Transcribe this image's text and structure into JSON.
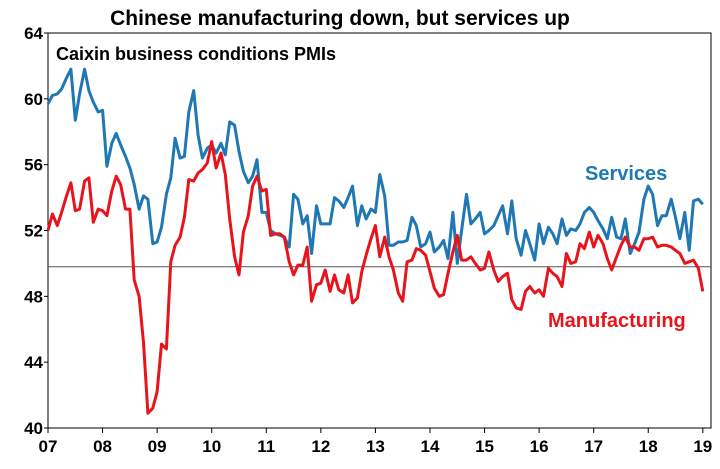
{
  "chart_data": {
    "type": "line",
    "title": "Chinese manufacturing down, but services up",
    "subtitle": "Caixin business conditions PMIs",
    "xlabel": "",
    "ylabel": "",
    "ylim": [
      40,
      64
    ],
    "y_ticks": [
      "40",
      "44",
      "48",
      "52",
      "56",
      "60",
      "64"
    ],
    "x_range": [
      2007.0,
      2019.15
    ],
    "x_ticks": [
      {
        "label": "07",
        "x": 2007
      },
      {
        "label": "08",
        "x": 2008
      },
      {
        "label": "09",
        "x": 2009
      },
      {
        "label": "10",
        "x": 2010
      },
      {
        "label": "11",
        "x": 2011
      },
      {
        "label": "12",
        "x": 2012
      },
      {
        "label": "13",
        "x": 2013
      },
      {
        "label": "14",
        "x": 2014
      },
      {
        "label": "15",
        "x": 2015
      },
      {
        "label": "16",
        "x": 2016
      },
      {
        "label": "17",
        "x": 2017
      },
      {
        "label": "18",
        "x": 2018
      },
      {
        "label": "19",
        "x": 2019
      }
    ],
    "reference_line": 49.8,
    "series": [
      {
        "name": "Services",
        "label": "Services",
        "color": "#1f77b4",
        "points": [
          [
            2007.0,
            59.7
          ],
          [
            2007.08,
            60.2
          ],
          [
            2007.17,
            60.3
          ],
          [
            2007.25,
            60.6
          ],
          [
            2007.33,
            61.2
          ],
          [
            2007.42,
            61.8
          ],
          [
            2007.5,
            58.7
          ],
          [
            2007.58,
            60.3
          ],
          [
            2007.67,
            61.8
          ],
          [
            2007.75,
            60.5
          ],
          [
            2007.83,
            59.8
          ],
          [
            2007.92,
            59.2
          ],
          [
            2008.0,
            59.3
          ],
          [
            2008.08,
            55.9
          ],
          [
            2008.17,
            57.3
          ],
          [
            2008.25,
            57.9
          ],
          [
            2008.33,
            57.2
          ],
          [
            2008.42,
            56.5
          ],
          [
            2008.5,
            55.8
          ],
          [
            2008.58,
            54.8
          ],
          [
            2008.67,
            53.3
          ],
          [
            2008.75,
            54.1
          ],
          [
            2008.83,
            53.9
          ],
          [
            2008.92,
            51.2
          ],
          [
            2009.0,
            51.3
          ],
          [
            2009.08,
            52.2
          ],
          [
            2009.17,
            54.2
          ],
          [
            2009.25,
            55.2
          ],
          [
            2009.33,
            57.6
          ],
          [
            2009.42,
            56.4
          ],
          [
            2009.5,
            56.5
          ],
          [
            2009.58,
            59.2
          ],
          [
            2009.67,
            60.5
          ],
          [
            2009.75,
            57.8
          ],
          [
            2009.83,
            56.4
          ],
          [
            2009.92,
            57.0
          ],
          [
            2010.0,
            57.2
          ],
          [
            2010.08,
            56.7
          ],
          [
            2010.17,
            57.3
          ],
          [
            2010.25,
            56.6
          ],
          [
            2010.33,
            58.6
          ],
          [
            2010.42,
            58.4
          ],
          [
            2010.5,
            56.8
          ],
          [
            2010.58,
            55.6
          ],
          [
            2010.67,
            54.9
          ],
          [
            2010.75,
            55.3
          ],
          [
            2010.83,
            56.3
          ],
          [
            2010.92,
            53.1
          ],
          [
            2011.0,
            53.1
          ],
          [
            2011.08,
            52.0
          ],
          [
            2011.17,
            51.8
          ],
          [
            2011.25,
            51.7
          ],
          [
            2011.33,
            51.6
          ],
          [
            2011.42,
            51.0
          ],
          [
            2011.5,
            54.2
          ],
          [
            2011.58,
            53.9
          ],
          [
            2011.67,
            52.4
          ],
          [
            2011.75,
            52.9
          ],
          [
            2011.83,
            50.6
          ],
          [
            2011.92,
            53.5
          ],
          [
            2012.0,
            52.4
          ],
          [
            2012.08,
            52.4
          ],
          [
            2012.17,
            52.4
          ],
          [
            2012.25,
            54.0
          ],
          [
            2012.33,
            53.8
          ],
          [
            2012.42,
            53.4
          ],
          [
            2012.5,
            54.0
          ],
          [
            2012.58,
            54.7
          ],
          [
            2012.67,
            52.3
          ],
          [
            2012.75,
            53.5
          ],
          [
            2012.83,
            52.7
          ],
          [
            2012.92,
            53.3
          ],
          [
            2013.0,
            53.1
          ],
          [
            2013.08,
            55.4
          ],
          [
            2013.17,
            54.1
          ],
          [
            2013.25,
            51.1
          ],
          [
            2013.33,
            51.1
          ],
          [
            2013.42,
            51.3
          ],
          [
            2013.5,
            51.3
          ],
          [
            2013.58,
            51.4
          ],
          [
            2013.67,
            52.8
          ],
          [
            2013.75,
            52.3
          ],
          [
            2013.83,
            51.0
          ],
          [
            2013.92,
            51.2
          ],
          [
            2014.0,
            51.9
          ],
          [
            2014.08,
            50.7
          ],
          [
            2014.17,
            51.0
          ],
          [
            2014.25,
            51.4
          ],
          [
            2014.33,
            50.3
          ],
          [
            2014.42,
            53.1
          ],
          [
            2014.5,
            50.0
          ],
          [
            2014.58,
            52.0
          ],
          [
            2014.67,
            54.2
          ],
          [
            2014.75,
            52.4
          ],
          [
            2014.83,
            52.7
          ],
          [
            2014.92,
            53.1
          ],
          [
            2015.0,
            51.8
          ],
          [
            2015.08,
            52.0
          ],
          [
            2015.17,
            52.3
          ],
          [
            2015.25,
            52.9
          ],
          [
            2015.33,
            53.5
          ],
          [
            2015.42,
            51.8
          ],
          [
            2015.5,
            53.8
          ],
          [
            2015.58,
            51.5
          ],
          [
            2015.67,
            50.5
          ],
          [
            2015.75,
            52.0
          ],
          [
            2015.83,
            51.2
          ],
          [
            2015.92,
            50.2
          ],
          [
            2016.0,
            52.4
          ],
          [
            2016.08,
            51.2
          ],
          [
            2016.17,
            52.2
          ],
          [
            2016.25,
            51.8
          ],
          [
            2016.33,
            51.2
          ],
          [
            2016.42,
            52.7
          ],
          [
            2016.5,
            51.7
          ],
          [
            2016.58,
            52.1
          ],
          [
            2016.67,
            52.0
          ],
          [
            2016.75,
            52.4
          ],
          [
            2016.83,
            53.1
          ],
          [
            2016.92,
            53.4
          ],
          [
            2017.0,
            53.1
          ],
          [
            2017.08,
            52.6
          ],
          [
            2017.17,
            52.1
          ],
          [
            2017.25,
            51.5
          ],
          [
            2017.33,
            52.8
          ],
          [
            2017.42,
            51.6
          ],
          [
            2017.5,
            51.5
          ],
          [
            2017.58,
            52.7
          ],
          [
            2017.67,
            50.6
          ],
          [
            2017.75,
            51.2
          ],
          [
            2017.83,
            51.9
          ],
          [
            2017.92,
            53.9
          ],
          [
            2018.0,
            54.7
          ],
          [
            2018.08,
            54.2
          ],
          [
            2018.17,
            52.3
          ],
          [
            2018.25,
            52.9
          ],
          [
            2018.33,
            52.9
          ],
          [
            2018.42,
            53.9
          ],
          [
            2018.5,
            52.8
          ],
          [
            2018.58,
            51.5
          ],
          [
            2018.67,
            53.1
          ],
          [
            2018.75,
            50.8
          ],
          [
            2018.83,
            53.8
          ],
          [
            2018.92,
            53.9
          ],
          [
            2019.0,
            53.6
          ]
        ]
      },
      {
        "name": "Manufacturing",
        "label": "Manufacturing",
        "color": "#e8141c",
        "points": [
          [
            2007.0,
            52.0
          ],
          [
            2007.08,
            53.0
          ],
          [
            2007.17,
            52.3
          ],
          [
            2007.25,
            53.1
          ],
          [
            2007.33,
            54.0
          ],
          [
            2007.42,
            54.9
          ],
          [
            2007.5,
            53.2
          ],
          [
            2007.58,
            53.3
          ],
          [
            2007.67,
            55.0
          ],
          [
            2007.75,
            55.2
          ],
          [
            2007.83,
            52.5
          ],
          [
            2007.92,
            53.3
          ],
          [
            2008.0,
            53.2
          ],
          [
            2008.08,
            52.9
          ],
          [
            2008.17,
            54.4
          ],
          [
            2008.25,
            55.3
          ],
          [
            2008.33,
            54.8
          ],
          [
            2008.42,
            53.3
          ],
          [
            2008.5,
            53.3
          ],
          [
            2008.58,
            49.0
          ],
          [
            2008.67,
            48.0
          ],
          [
            2008.75,
            45.2
          ],
          [
            2008.83,
            40.9
          ],
          [
            2008.92,
            41.2
          ],
          [
            2009.0,
            42.2
          ],
          [
            2009.08,
            45.1
          ],
          [
            2009.17,
            44.8
          ],
          [
            2009.25,
            50.1
          ],
          [
            2009.33,
            51.1
          ],
          [
            2009.42,
            51.6
          ],
          [
            2009.5,
            52.8
          ],
          [
            2009.58,
            55.1
          ],
          [
            2009.67,
            55.0
          ],
          [
            2009.75,
            55.5
          ],
          [
            2009.83,
            55.7
          ],
          [
            2009.92,
            56.1
          ],
          [
            2010.0,
            57.4
          ],
          [
            2010.08,
            55.8
          ],
          [
            2010.17,
            56.7
          ],
          [
            2010.25,
            55.4
          ],
          [
            2010.33,
            52.7
          ],
          [
            2010.42,
            50.4
          ],
          [
            2010.5,
            49.3
          ],
          [
            2010.58,
            51.9
          ],
          [
            2010.67,
            52.9
          ],
          [
            2010.75,
            54.7
          ],
          [
            2010.83,
            55.3
          ],
          [
            2010.92,
            54.4
          ],
          [
            2011.0,
            54.5
          ],
          [
            2011.08,
            51.7
          ],
          [
            2011.17,
            51.8
          ],
          [
            2011.25,
            51.8
          ],
          [
            2011.33,
            51.6
          ],
          [
            2011.42,
            50.1
          ],
          [
            2011.5,
            49.3
          ],
          [
            2011.58,
            49.9
          ],
          [
            2011.67,
            49.9
          ],
          [
            2011.75,
            51.0
          ],
          [
            2011.83,
            47.7
          ],
          [
            2011.92,
            48.7
          ],
          [
            2012.0,
            48.8
          ],
          [
            2012.08,
            49.6
          ],
          [
            2012.17,
            48.3
          ],
          [
            2012.25,
            49.3
          ],
          [
            2012.33,
            48.4
          ],
          [
            2012.42,
            48.2
          ],
          [
            2012.5,
            49.3
          ],
          [
            2012.58,
            47.6
          ],
          [
            2012.67,
            47.9
          ],
          [
            2012.75,
            49.5
          ],
          [
            2012.83,
            50.5
          ],
          [
            2012.92,
            51.5
          ],
          [
            2013.0,
            52.3
          ],
          [
            2013.08,
            50.4
          ],
          [
            2013.17,
            51.6
          ],
          [
            2013.25,
            50.4
          ],
          [
            2013.33,
            49.6
          ],
          [
            2013.42,
            48.2
          ],
          [
            2013.5,
            47.7
          ],
          [
            2013.58,
            50.1
          ],
          [
            2013.67,
            50.2
          ],
          [
            2013.75,
            50.9
          ],
          [
            2013.83,
            50.8
          ],
          [
            2013.92,
            50.5
          ],
          [
            2014.0,
            49.5
          ],
          [
            2014.08,
            48.5
          ],
          [
            2014.17,
            48.0
          ],
          [
            2014.25,
            48.1
          ],
          [
            2014.33,
            49.4
          ],
          [
            2014.42,
            50.7
          ],
          [
            2014.5,
            51.7
          ],
          [
            2014.58,
            50.2
          ],
          [
            2014.67,
            50.2
          ],
          [
            2014.75,
            50.4
          ],
          [
            2014.83,
            50.0
          ],
          [
            2014.92,
            49.6
          ],
          [
            2015.0,
            49.7
          ],
          [
            2015.08,
            50.7
          ],
          [
            2015.17,
            49.6
          ],
          [
            2015.25,
            48.9
          ],
          [
            2015.33,
            49.2
          ],
          [
            2015.42,
            49.4
          ],
          [
            2015.5,
            47.8
          ],
          [
            2015.58,
            47.3
          ],
          [
            2015.67,
            47.2
          ],
          [
            2015.75,
            48.3
          ],
          [
            2015.83,
            48.6
          ],
          [
            2015.92,
            48.2
          ],
          [
            2016.0,
            48.4
          ],
          [
            2016.08,
            48.0
          ],
          [
            2016.17,
            49.7
          ],
          [
            2016.25,
            49.4
          ],
          [
            2016.33,
            49.2
          ],
          [
            2016.42,
            48.6
          ],
          [
            2016.5,
            50.6
          ],
          [
            2016.58,
            50.0
          ],
          [
            2016.67,
            50.1
          ],
          [
            2016.75,
            51.2
          ],
          [
            2016.83,
            50.9
          ],
          [
            2016.92,
            51.9
          ],
          [
            2017.0,
            51.0
          ],
          [
            2017.08,
            51.7
          ],
          [
            2017.17,
            51.2
          ],
          [
            2017.25,
            50.3
          ],
          [
            2017.33,
            49.6
          ],
          [
            2017.42,
            50.4
          ],
          [
            2017.5,
            51.1
          ],
          [
            2017.58,
            51.6
          ],
          [
            2017.67,
            51.0
          ],
          [
            2017.75,
            51.0
          ],
          [
            2017.83,
            50.8
          ],
          [
            2017.92,
            51.5
          ],
          [
            2018.0,
            51.5
          ],
          [
            2018.08,
            51.6
          ],
          [
            2018.17,
            51.0
          ],
          [
            2018.25,
            51.1
          ],
          [
            2018.33,
            51.1
          ],
          [
            2018.42,
            51.0
          ],
          [
            2018.5,
            50.8
          ],
          [
            2018.58,
            50.6
          ],
          [
            2018.67,
            50.0
          ],
          [
            2018.75,
            50.1
          ],
          [
            2018.83,
            50.2
          ],
          [
            2018.92,
            49.7
          ],
          [
            2019.0,
            48.3
          ]
        ]
      }
    ]
  }
}
